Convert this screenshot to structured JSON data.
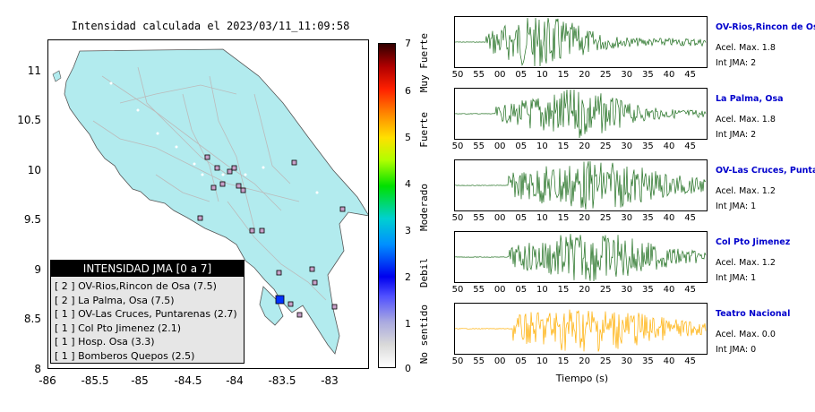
{
  "map": {
    "title": "Intensidad calculada el 2023/03/11_11:09:58",
    "y_ticks": [
      "11",
      "10.5",
      "10",
      "9.5",
      "9",
      "8.5",
      "8"
    ],
    "x_ticks": [
      "-86",
      "-85.5",
      "-85",
      "-84.5",
      "-84",
      "-83.5",
      "-83"
    ],
    "land_color": "#b2ebee",
    "epicenter_color": "#0033ff"
  },
  "legend": {
    "title": "INTENSIDAD JMA [0 a 7]",
    "items": [
      "[ 2 ]  OV-Rios,Rincon de Osa (7.5)",
      "[ 2 ]  La Palma, Osa (7.5)",
      "[ 1 ]  OV-Las Cruces, Puntarenas (2.7)",
      "[ 1 ]  Col Pto Jimenez (2.1)",
      "[ 1 ]  Hosp. Osa (3.3)",
      "[ 1 ]  Bomberos Quepos (2.5)"
    ]
  },
  "colorbar": {
    "ticks": [
      "7",
      "6",
      "5",
      "4",
      "3",
      "2",
      "1",
      "0"
    ],
    "labels": [
      "Muy Fuerte",
      "Fuerte",
      "Moderado",
      "Debil",
      "No sentido"
    ]
  },
  "seismograms": {
    "axis_labels": [
      "50",
      "55",
      "00",
      "05",
      "10",
      "15",
      "20",
      "25",
      "30",
      "35",
      "40",
      "45"
    ],
    "time_label": "Tiempo (s)",
    "panels": [
      {
        "name": "OV-Rios,Rincon de Osa",
        "acel": "Acel. Max. 1.8",
        "int": "Int JMA: 2",
        "color": "#1e6e1e"
      },
      {
        "name": "La Palma, Osa",
        "acel": "Acel. Max. 1.8",
        "int": "Int JMA: 2",
        "color": "#1e6e1e"
      },
      {
        "name": "OV-Las Cruces, Puntarenas",
        "acel": "Acel. Max. 1.2",
        "int": "Int JMA: 1",
        "color": "#1e6e1e"
      },
      {
        "name": "Col Pto Jimenez",
        "acel": "Acel. Max. 1.2",
        "int": "Int JMA: 1",
        "color": "#1e6e1e"
      },
      {
        "name": "Teatro Nacional",
        "acel": "Acel. Max. 0.0",
        "int": "Int JMA: 0",
        "color": "#ffae00"
      }
    ]
  }
}
